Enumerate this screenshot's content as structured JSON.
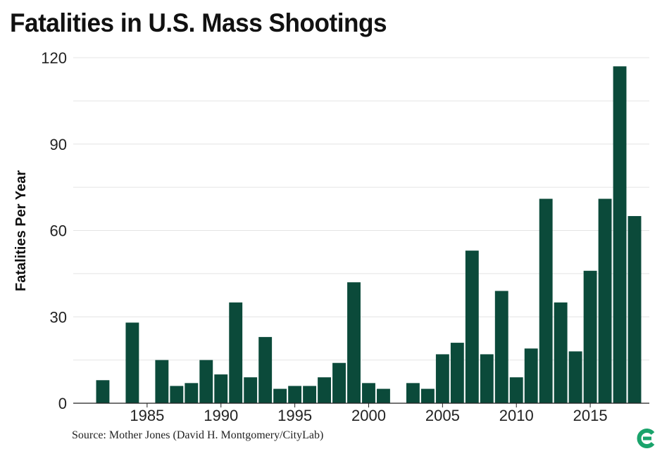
{
  "chart_data": {
    "type": "bar",
    "title": "Fatalities in U.S. Mass Shootings",
    "xlabel": "",
    "ylabel": "Fatalities Per Year",
    "ylim": [
      0,
      120
    ],
    "xlim": [
      1980,
      2019
    ],
    "yticks": [
      0,
      30,
      60,
      90,
      120
    ],
    "xticks": [
      1985,
      1990,
      1995,
      2000,
      2005,
      2010,
      2015
    ],
    "grid": true,
    "color": "#0b4a3a",
    "x": [
      1982,
      1984,
      1986,
      1987,
      1988,
      1989,
      1990,
      1991,
      1992,
      1993,
      1994,
      1995,
      1996,
      1997,
      1998,
      1999,
      2000,
      2001,
      2003,
      2004,
      2005,
      2006,
      2007,
      2008,
      2009,
      2010,
      2011,
      2012,
      2013,
      2014,
      2015,
      2016,
      2017,
      2018
    ],
    "values": [
      8,
      28,
      15,
      6,
      7,
      15,
      10,
      35,
      9,
      23,
      5,
      6,
      6,
      9,
      14,
      42,
      7,
      5,
      7,
      5,
      17,
      21,
      53,
      17,
      39,
      9,
      19,
      71,
      35,
      18,
      46,
      71,
      117,
      65
    ]
  },
  "source": "Source: Mother Jones (David H. Montgomery/CityLab)",
  "brand_color": "#1aa36b"
}
